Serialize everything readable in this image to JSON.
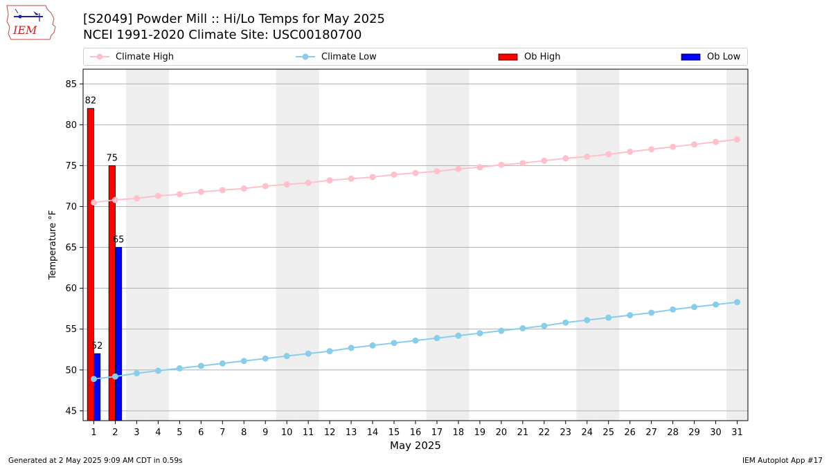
{
  "logo": {
    "text": "IEM",
    "color": "#cc2222"
  },
  "titles": {
    "line1": "[S2049] Powder Mill :: Hi/Lo Temps for May 2025",
    "line2": "NCEI 1991-2020 Climate Site: USC00180700"
  },
  "legend": {
    "climate_high": "Climate High",
    "climate_low": "Climate Low",
    "ob_high": "Ob High",
    "ob_low": "Ob Low"
  },
  "colors": {
    "climate_high": "#ffc0cb",
    "climate_low": "#87ceeb",
    "ob_high": "#ff0000",
    "ob_low": "#0000ff",
    "weekend_band": "#eeeeee",
    "grid": "#b0b0b0"
  },
  "chart_data": {
    "type": "bar",
    "xlabel": "May 2025",
    "ylabel": "Temperature °F",
    "ylim": [
      43.8,
      86.8
    ],
    "yticks": [
      45,
      50,
      55,
      60,
      65,
      70,
      75,
      80,
      85
    ],
    "x": [
      1,
      2,
      3,
      4,
      5,
      6,
      7,
      8,
      9,
      10,
      11,
      12,
      13,
      14,
      15,
      16,
      17,
      18,
      19,
      20,
      21,
      22,
      23,
      24,
      25,
      26,
      27,
      28,
      29,
      30,
      31
    ],
    "shaded_days": [
      3,
      4,
      10,
      11,
      17,
      18,
      24,
      25,
      31
    ],
    "grid": "horizontal",
    "legend_position": "top",
    "series": [
      {
        "name": "Climate High",
        "kind": "line",
        "values": [
          70.5,
          70.8,
          71.0,
          71.3,
          71.5,
          71.8,
          72.0,
          72.2,
          72.5,
          72.7,
          72.9,
          73.2,
          73.4,
          73.6,
          73.9,
          74.1,
          74.3,
          74.6,
          74.8,
          75.1,
          75.3,
          75.6,
          75.9,
          76.1,
          76.4,
          76.7,
          77.0,
          77.3,
          77.6,
          77.9,
          78.2
        ]
      },
      {
        "name": "Climate Low",
        "kind": "line",
        "values": [
          48.9,
          49.2,
          49.6,
          49.9,
          50.2,
          50.5,
          50.8,
          51.1,
          51.4,
          51.7,
          52.0,
          52.3,
          52.7,
          53.0,
          53.3,
          53.6,
          53.9,
          54.2,
          54.5,
          54.8,
          55.1,
          55.4,
          55.8,
          56.1,
          56.4,
          56.7,
          57.0,
          57.4,
          57.7,
          58.0,
          58.3
        ]
      },
      {
        "name": "Ob High",
        "kind": "bar",
        "x": [
          1,
          2
        ],
        "values": [
          82,
          75
        ],
        "labels": [
          "82",
          "75"
        ]
      },
      {
        "name": "Ob Low",
        "kind": "bar",
        "x": [
          1,
          2
        ],
        "values": [
          52,
          65
        ],
        "labels": [
          "52",
          "65"
        ]
      }
    ]
  },
  "footer": {
    "left": "Generated at 2 May 2025 9:09 AM CDT in 0.59s",
    "right": "IEM Autoplot App #17"
  }
}
